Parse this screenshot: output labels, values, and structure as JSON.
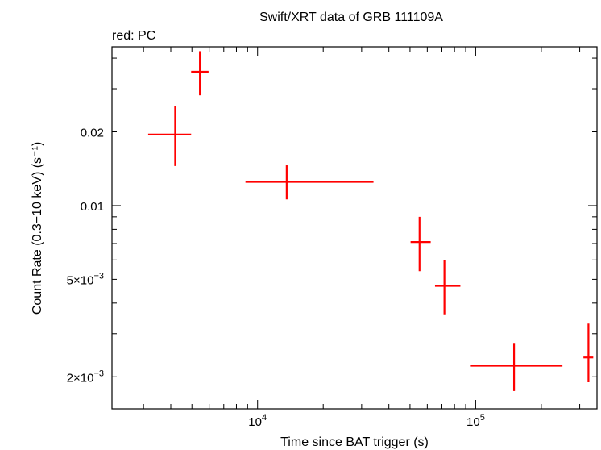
{
  "chart_data": {
    "type": "scatter",
    "title": "Swift/XRT data of GRB 111109A",
    "subtitle": "red: PC",
    "xlabel": "Time since BAT trigger (s)",
    "ylabel": "Count Rate (0.3−10 keV) (s⁻¹)",
    "x_scale": "log",
    "y_scale": "log",
    "xlim": [
      2150,
      360000
    ],
    "ylim": [
      0.00148,
      0.0445
    ],
    "grid": false,
    "legend": "none",
    "series_color": "#ff0000",
    "x_tick_labels": [
      {
        "value": 10000,
        "base": "10",
        "exp": "4"
      },
      {
        "value": 100000,
        "base": "10",
        "exp": "5"
      }
    ],
    "y_tick_labels": [
      {
        "value": 0.02,
        "text": "0.02"
      },
      {
        "value": 0.01,
        "text": "0.01"
      },
      {
        "value": 0.005,
        "mant": "5×10",
        "exp": "−3"
      },
      {
        "value": 0.002,
        "mant": "2×10",
        "exp": "−3"
      }
    ],
    "points": [
      {
        "x": 4190,
        "x_lo": 3150,
        "x_hi": 4960,
        "y": 0.0195,
        "y_lo": 0.0145,
        "y_hi": 0.0255
      },
      {
        "x": 5440,
        "x_lo": 4960,
        "x_hi": 5960,
        "y": 0.0352,
        "y_lo": 0.0282,
        "y_hi": 0.0427
      },
      {
        "x": 13600,
        "x_lo": 8800,
        "x_hi": 34000,
        "y": 0.0125,
        "y_lo": 0.0106,
        "y_hi": 0.0146
      },
      {
        "x": 55300,
        "x_lo": 50300,
        "x_hi": 62200,
        "y": 0.0071,
        "y_lo": 0.0054,
        "y_hi": 0.009
      },
      {
        "x": 71900,
        "x_lo": 65100,
        "x_hi": 85100,
        "y": 0.0047,
        "y_lo": 0.0036,
        "y_hi": 0.006
      },
      {
        "x": 150000,
        "x_lo": 95000,
        "x_hi": 250000,
        "y": 0.00222,
        "y_lo": 0.00175,
        "y_hi": 0.00275
      },
      {
        "x": 329000,
        "x_lo": 312000,
        "x_hi": 346000,
        "y": 0.0024,
        "y_lo": 0.0019,
        "y_hi": 0.0033
      }
    ]
  }
}
